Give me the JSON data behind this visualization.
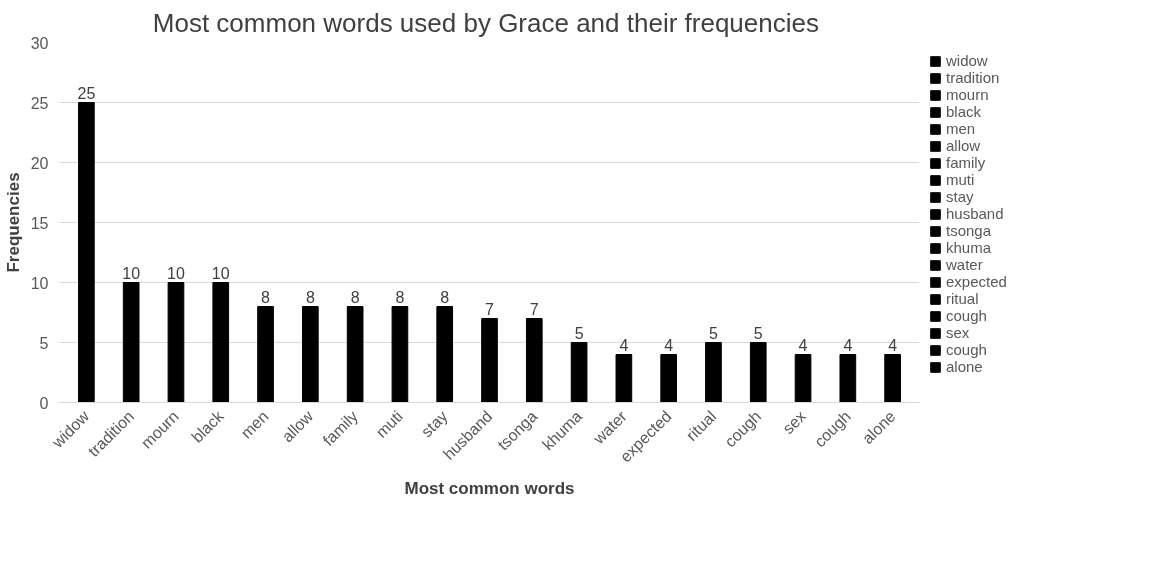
{
  "chart_data": {
    "type": "bar",
    "title": "Most common words used by  Grace and their frequencies",
    "xlabel": "Most common words",
    "ylabel": "Frequencies",
    "categories": [
      "widow",
      "tradition",
      "mourn",
      "black",
      "men",
      "allow",
      "family",
      "muti",
      "stay",
      "husband",
      "tsonga",
      "khuma",
      "water",
      "expected",
      "ritual",
      "cough",
      "sex",
      "cough",
      "alone"
    ],
    "series": [
      {
        "name": "widow",
        "color": "#000000",
        "values": [
          25,
          null,
          null,
          null,
          null,
          null,
          null,
          null,
          null,
          null,
          null,
          null,
          null,
          null,
          null,
          null,
          null,
          null,
          null
        ]
      },
      {
        "name": "tradition",
        "color": "#000000",
        "values": [
          null,
          10,
          null,
          null,
          null,
          null,
          null,
          null,
          null,
          null,
          null,
          null,
          null,
          null,
          null,
          null,
          null,
          null,
          null
        ]
      },
      {
        "name": "mourn",
        "color": "#000000",
        "values": [
          null,
          null,
          10,
          null,
          null,
          null,
          null,
          null,
          null,
          null,
          null,
          null,
          null,
          null,
          null,
          null,
          null,
          null,
          null
        ]
      },
      {
        "name": "black",
        "color": "#000000",
        "values": [
          null,
          null,
          null,
          10,
          null,
          null,
          null,
          null,
          null,
          null,
          null,
          null,
          null,
          null,
          null,
          null,
          null,
          null,
          null
        ]
      },
      {
        "name": "men",
        "color": "#000000",
        "values": [
          null,
          null,
          null,
          null,
          8,
          null,
          null,
          null,
          null,
          null,
          null,
          null,
          null,
          null,
          null,
          null,
          null,
          null,
          null
        ]
      },
      {
        "name": "allow",
        "color": "#000000",
        "values": [
          null,
          null,
          null,
          null,
          null,
          8,
          null,
          null,
          null,
          null,
          null,
          null,
          null,
          null,
          null,
          null,
          null,
          null,
          null
        ]
      },
      {
        "name": "family",
        "color": "#000000",
        "values": [
          null,
          null,
          null,
          null,
          null,
          null,
          8,
          null,
          null,
          null,
          null,
          null,
          null,
          null,
          null,
          null,
          null,
          null,
          null
        ]
      },
      {
        "name": "muti",
        "color": "#000000",
        "values": [
          null,
          null,
          null,
          null,
          null,
          null,
          null,
          8,
          null,
          null,
          null,
          null,
          null,
          null,
          null,
          null,
          null,
          null,
          null
        ]
      },
      {
        "name": "stay",
        "color": "#000000",
        "values": [
          null,
          null,
          null,
          null,
          null,
          null,
          null,
          null,
          8,
          null,
          null,
          null,
          null,
          null,
          null,
          null,
          null,
          null,
          null
        ]
      },
      {
        "name": "husband",
        "color": "#000000",
        "values": [
          null,
          null,
          null,
          null,
          null,
          null,
          null,
          null,
          null,
          7,
          null,
          null,
          null,
          null,
          null,
          null,
          null,
          null,
          null
        ]
      },
      {
        "name": "tsonga",
        "color": "#000000",
        "values": [
          null,
          null,
          null,
          null,
          null,
          null,
          null,
          null,
          null,
          null,
          7,
          null,
          null,
          null,
          null,
          null,
          null,
          null,
          null
        ]
      },
      {
        "name": "khuma",
        "color": "#000000",
        "values": [
          null,
          null,
          null,
          null,
          null,
          null,
          null,
          null,
          null,
          null,
          null,
          5,
          null,
          null,
          null,
          null,
          null,
          null,
          null
        ]
      },
      {
        "name": "water",
        "color": "#000000",
        "values": [
          null,
          null,
          null,
          null,
          null,
          null,
          null,
          null,
          null,
          null,
          null,
          null,
          4,
          null,
          null,
          null,
          null,
          null,
          null
        ]
      },
      {
        "name": "expected",
        "color": "#000000",
        "values": [
          null,
          null,
          null,
          null,
          null,
          null,
          null,
          null,
          null,
          null,
          null,
          null,
          null,
          4,
          null,
          null,
          null,
          null,
          null
        ]
      },
      {
        "name": "ritual",
        "color": "#000000",
        "values": [
          null,
          null,
          null,
          null,
          null,
          null,
          null,
          null,
          null,
          null,
          null,
          null,
          null,
          null,
          5,
          null,
          null,
          null,
          null
        ]
      },
      {
        "name": "cough",
        "color": "#000000",
        "values": [
          null,
          null,
          null,
          null,
          null,
          null,
          null,
          null,
          null,
          null,
          null,
          null,
          null,
          null,
          null,
          5,
          null,
          null,
          null
        ]
      },
      {
        "name": "sex",
        "color": "#000000",
        "values": [
          null,
          null,
          null,
          null,
          null,
          null,
          null,
          null,
          null,
          null,
          null,
          null,
          null,
          null,
          null,
          null,
          4,
          null,
          null
        ]
      },
      {
        "name": "cough",
        "color": "#000000",
        "values": [
          null,
          null,
          null,
          null,
          null,
          null,
          null,
          null,
          null,
          null,
          null,
          null,
          null,
          null,
          null,
          null,
          null,
          4,
          null
        ]
      },
      {
        "name": "alone",
        "color": "#000000",
        "values": [
          null,
          null,
          null,
          null,
          null,
          null,
          null,
          null,
          null,
          null,
          null,
          null,
          null,
          null,
          null,
          null,
          null,
          null,
          4
        ]
      }
    ],
    "ylim": [
      0,
      30
    ],
    "yticks": [
      0,
      5,
      10,
      15,
      20,
      25,
      30
    ],
    "grid": "y",
    "legend": "right",
    "data_labels": true
  }
}
